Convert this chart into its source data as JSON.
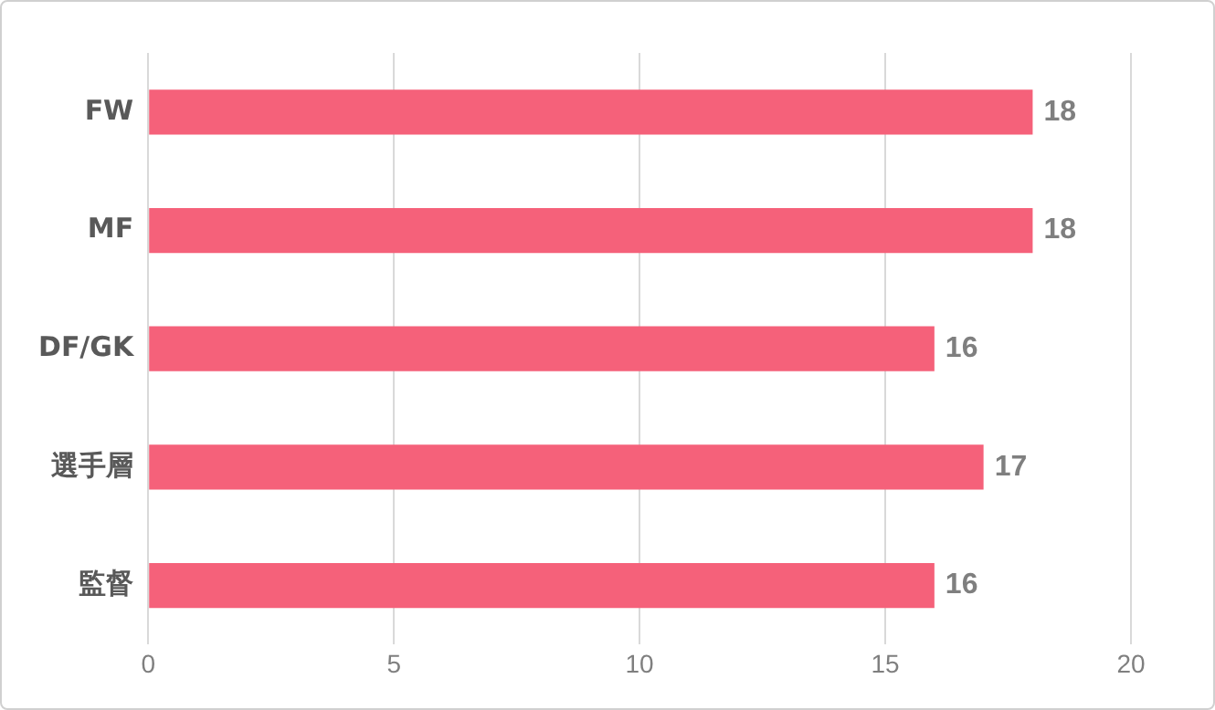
{
  "chart_data": {
    "type": "bar",
    "orientation": "horizontal",
    "categories": [
      "FW",
      "MF",
      "DF/GK",
      "選手層",
      "監督"
    ],
    "values": [
      18,
      18,
      16,
      17,
      16
    ],
    "color": "#f5617a",
    "xlim": [
      0,
      20
    ],
    "xticks": [
      0,
      5,
      10,
      15,
      20
    ],
    "grid": "x",
    "data_labels": true,
    "legend": false
  }
}
